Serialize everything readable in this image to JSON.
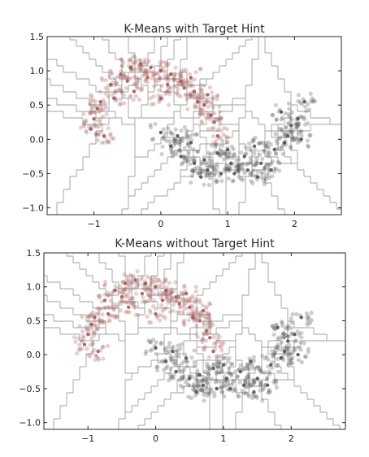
{
  "chart_data": [
    {
      "type": "scatter",
      "title": "K-Means with Target Hint",
      "xlabel": "",
      "ylabel": "",
      "xlim": [
        -1.7,
        2.7
      ],
      "ylim": [
        -1.1,
        1.5
      ],
      "xticks": [
        -1,
        0,
        1,
        2
      ],
      "yticks": [
        -1.0,
        -0.5,
        0.0,
        0.5,
        1.0,
        1.5
      ],
      "xtick_labels": [
        "−1",
        "0",
        "1",
        "2"
      ],
      "ytick_labels": [
        "−1.0",
        "−0.5",
        "0.0",
        "0.5",
        "1.0",
        "1.5"
      ],
      "grid": false,
      "overlay": "voronoi cells of cluster centers",
      "series": [
        {
          "color": "#a05a5a",
          "x": [
            -1.0,
            -0.9,
            -0.75,
            -0.6,
            -0.45,
            -0.3,
            -0.15,
            0.0,
            0.15,
            0.3,
            0.5,
            0.65,
            0.8,
            -1.05,
            -0.95,
            -0.7,
            -0.5,
            -0.2,
            0.1,
            0.35,
            0.55,
            0.75,
            0.85,
            -0.85,
            -0.4,
            0.0,
            0.45,
            0.7
          ],
          "y": [
            0.3,
            0.55,
            0.8,
            0.95,
            1.05,
            1.1,
            1.05,
            1.0,
            0.95,
            0.85,
            0.7,
            0.5,
            0.25,
            0.15,
            0.45,
            0.6,
            0.85,
            0.9,
            0.8,
            0.75,
            0.55,
            0.35,
            0.05,
            0.05,
            0.7,
            0.6,
            0.9,
            0.65
          ]
        },
        {
          "color": "#505050",
          "x": [
            0.0,
            0.15,
            0.3,
            0.5,
            0.7,
            0.9,
            1.1,
            1.3,
            1.5,
            1.7,
            1.9,
            2.05,
            2.15,
            0.25,
            0.45,
            0.65,
            0.85,
            1.05,
            1.25,
            1.45,
            1.65,
            1.85,
            1.95,
            2.1,
            0.6,
            1.0,
            1.4,
            1.8
          ],
          "y": [
            0.1,
            -0.1,
            -0.25,
            -0.35,
            -0.45,
            -0.5,
            -0.5,
            -0.45,
            -0.35,
            -0.15,
            0.05,
            0.3,
            0.55,
            0.05,
            -0.05,
            -0.3,
            -0.2,
            -0.35,
            -0.25,
            -0.55,
            -0.45,
            -0.05,
            0.2,
            0.0,
            -0.55,
            -0.15,
            -0.1,
            0.4
          ]
        }
      ]
    },
    {
      "type": "scatter",
      "title": "K-Means without Target Hint",
      "xlabel": "",
      "ylabel": "",
      "xlim": [
        -1.65,
        2.8
      ],
      "ylim": [
        -1.1,
        1.5
      ],
      "xticks": [
        -1,
        0,
        1,
        2
      ],
      "yticks": [
        -1.0,
        -0.5,
        0.0,
        0.5,
        1.0,
        1.5
      ],
      "xtick_labels": [
        "−1",
        "0",
        "1",
        "2"
      ],
      "ytick_labels": [
        "−1.0",
        "−0.5",
        "0.0",
        "0.5",
        "1.0",
        "1.5"
      ],
      "grid": false,
      "overlay": "voronoi cells of cluster centers",
      "series": [
        {
          "color": "#a05a5a",
          "x": [
            -1.0,
            -0.9,
            -0.75,
            -0.6,
            -0.45,
            -0.3,
            -0.15,
            0.0,
            0.15,
            0.3,
            0.5,
            0.65,
            0.8,
            -1.05,
            -0.95,
            -0.7,
            -0.5,
            -0.2,
            0.1,
            0.35,
            0.55,
            0.75,
            0.85,
            -0.85,
            -0.4,
            0.0,
            0.45,
            0.7
          ],
          "y": [
            0.3,
            0.55,
            0.8,
            0.95,
            1.05,
            1.1,
            1.05,
            1.0,
            0.95,
            0.85,
            0.7,
            0.5,
            0.25,
            0.15,
            0.45,
            0.6,
            0.85,
            0.9,
            0.8,
            0.75,
            0.55,
            0.35,
            0.05,
            0.05,
            0.7,
            0.6,
            0.9,
            0.65
          ]
        },
        {
          "color": "#505050",
          "x": [
            0.0,
            0.15,
            0.3,
            0.5,
            0.7,
            0.9,
            1.1,
            1.3,
            1.5,
            1.7,
            1.9,
            2.05,
            2.15,
            0.25,
            0.45,
            0.65,
            0.85,
            1.05,
            1.25,
            1.45,
            1.65,
            1.85,
            1.95,
            2.1,
            0.6,
            1.0,
            1.4,
            1.8
          ],
          "y": [
            0.1,
            -0.1,
            -0.25,
            -0.35,
            -0.45,
            -0.5,
            -0.5,
            -0.45,
            -0.35,
            -0.15,
            0.05,
            0.3,
            0.55,
            0.05,
            -0.05,
            -0.3,
            -0.2,
            -0.35,
            -0.25,
            -0.55,
            -0.45,
            -0.05,
            0.2,
            0.0,
            -0.55,
            -0.15,
            -0.1,
            0.4
          ]
        }
      ]
    }
  ]
}
